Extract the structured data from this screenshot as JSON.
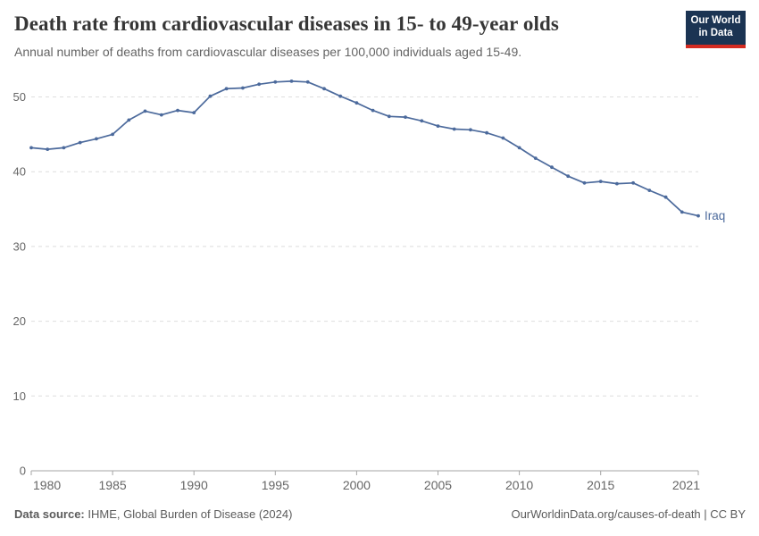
{
  "header": {
    "title": "Death rate from cardiovascular diseases in 15- to 49-year olds",
    "subtitle": "Annual number of deaths from cardiovascular diseases per 100,000 individuals aged 15-49.",
    "logo": {
      "line1": "Our World",
      "line2": "in Data",
      "bg_color": "#1b3453",
      "accent_color": "#d42b21"
    }
  },
  "chart_data": {
    "type": "line",
    "title": "Death rate from cardiovascular diseases in 15- to 49-year olds",
    "xlabel": "",
    "ylabel": "",
    "xlim": [
      1980,
      2021
    ],
    "ylim": [
      0,
      52.5
    ],
    "x_ticks": [
      1980,
      1985,
      1990,
      1995,
      2000,
      2005,
      2010,
      2015,
      2021
    ],
    "y_ticks": [
      0,
      10,
      20,
      30,
      40,
      50
    ],
    "grid": "horizontal-dashed",
    "legend_position": "end-of-line-label",
    "colors": {
      "line": "#4c6a9c",
      "gridline": "#dedede",
      "axis": "#a5a5a5",
      "tick_label": "#666666"
    },
    "series": [
      {
        "name": "Iraq",
        "color": "#4c6a9c",
        "x": [
          1980,
          1981,
          1982,
          1983,
          1984,
          1985,
          1986,
          1987,
          1988,
          1989,
          1990,
          1991,
          1992,
          1993,
          1994,
          1995,
          1996,
          1997,
          1998,
          1999,
          2000,
          2001,
          2002,
          2003,
          2004,
          2005,
          2006,
          2007,
          2008,
          2009,
          2010,
          2011,
          2012,
          2013,
          2014,
          2015,
          2016,
          2017,
          2018,
          2019,
          2020,
          2021
        ],
        "values": [
          43.2,
          43.0,
          43.2,
          43.9,
          44.4,
          45.0,
          46.9,
          48.1,
          47.6,
          48.2,
          47.9,
          50.1,
          51.1,
          51.2,
          51.7,
          52.0,
          52.1,
          52.0,
          51.1,
          50.1,
          49.2,
          48.2,
          47.4,
          47.3,
          46.8,
          46.1,
          45.7,
          45.6,
          45.2,
          44.5,
          43.2,
          41.8,
          40.6,
          39.4,
          38.5,
          38.7,
          38.4,
          38.5,
          37.5,
          36.6,
          34.6,
          34.1
        ]
      }
    ]
  },
  "footer": {
    "source_label": "Data source:",
    "source_text": " IHME, Global Burden of Disease (2024)",
    "credit": "OurWorldinData.org/causes-of-death | CC BY"
  }
}
